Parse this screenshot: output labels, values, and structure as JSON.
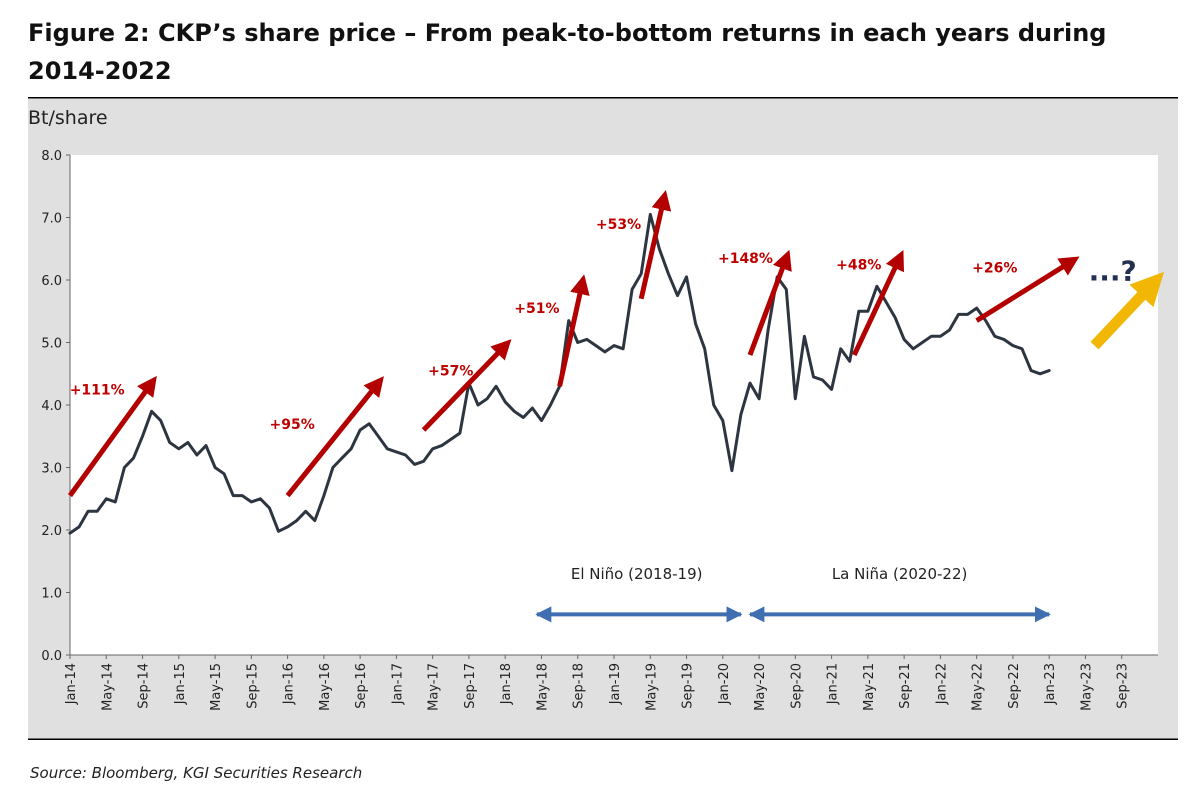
{
  "title": "Figure 2: CKP’s share price – From peak-to-bottom returns in each years during 2014-2022",
  "source": "Source: Bloomberg, KGI Securities Research",
  "colors": {
    "panel_bg": "#e0e0e0",
    "plot_bg": "#ffffff",
    "line": "#2d3540",
    "red_arrow": "#b30000",
    "red_label": "#c00000",
    "blue_arrow": "#3f6fb0",
    "gold_arrow": "#f2b705",
    "question": "#243050"
  },
  "chart_data": {
    "type": "line",
    "ylabel": "Bt/share",
    "ylim": [
      0,
      8
    ],
    "yticks": [
      "0.0",
      "1.0",
      "2.0",
      "3.0",
      "4.0",
      "5.0",
      "6.0",
      "7.0",
      "8.0"
    ],
    "xticks": [
      "Jan-14",
      "May-14",
      "Sep-14",
      "Jan-15",
      "May-15",
      "Sep-15",
      "Jan-16",
      "May-16",
      "Sep-16",
      "Jan-17",
      "May-17",
      "Sep-17",
      "Jan-18",
      "May-18",
      "Sep-18",
      "Jan-19",
      "May-19",
      "Sep-19",
      "Jan-20",
      "May-20",
      "Sep-20",
      "Jan-21",
      "May-21",
      "Sep-21",
      "Jan-22",
      "May-22",
      "Sep-22",
      "Jan-23",
      "May-23",
      "Sep-23"
    ],
    "series": [
      {
        "name": "CKP share price",
        "values": [
          [
            0,
            1.95
          ],
          [
            1,
            2.05
          ],
          [
            2,
            2.3
          ],
          [
            3,
            2.3
          ],
          [
            4,
            2.5
          ],
          [
            5,
            2.45
          ],
          [
            6,
            3.0
          ],
          [
            7,
            3.15
          ],
          [
            8,
            3.5
          ],
          [
            9,
            3.9
          ],
          [
            10,
            3.75
          ],
          [
            11,
            3.4
          ],
          [
            12,
            3.3
          ],
          [
            13,
            3.4
          ],
          [
            14,
            3.2
          ],
          [
            15,
            3.35
          ],
          [
            16,
            3.0
          ],
          [
            17,
            2.9
          ],
          [
            18,
            2.55
          ],
          [
            19,
            2.55
          ],
          [
            20,
            2.45
          ],
          [
            21,
            2.5
          ],
          [
            22,
            2.35
          ],
          [
            23,
            1.98
          ],
          [
            24,
            2.05
          ],
          [
            25,
            2.15
          ],
          [
            26,
            2.3
          ],
          [
            27,
            2.15
          ],
          [
            28,
            2.55
          ],
          [
            29,
            3.0
          ],
          [
            30,
            3.15
          ],
          [
            31,
            3.3
          ],
          [
            32,
            3.6
          ],
          [
            33,
            3.7
          ],
          [
            34,
            3.5
          ],
          [
            35,
            3.3
          ],
          [
            36,
            3.25
          ],
          [
            37,
            3.2
          ],
          [
            38,
            3.05
          ],
          [
            39,
            3.1
          ],
          [
            40,
            3.3
          ],
          [
            41,
            3.35
          ],
          [
            42,
            3.45
          ],
          [
            43,
            3.55
          ],
          [
            44,
            4.35
          ],
          [
            45,
            4.0
          ],
          [
            46,
            4.1
          ],
          [
            47,
            4.3
          ],
          [
            48,
            4.05
          ],
          [
            49,
            3.9
          ],
          [
            50,
            3.8
          ],
          [
            51,
            3.95
          ],
          [
            52,
            3.75
          ],
          [
            53,
            4.0
          ],
          [
            54,
            4.3
          ],
          [
            55,
            5.35
          ],
          [
            56,
            5.0
          ],
          [
            57,
            5.05
          ],
          [
            58,
            4.95
          ],
          [
            59,
            4.85
          ],
          [
            60,
            4.95
          ],
          [
            61,
            4.9
          ],
          [
            62,
            5.85
          ],
          [
            63,
            6.1
          ],
          [
            64,
            7.05
          ],
          [
            65,
            6.5
          ],
          [
            66,
            6.1
          ],
          [
            67,
            5.75
          ],
          [
            68,
            6.05
          ],
          [
            69,
            5.3
          ],
          [
            70,
            4.9
          ],
          [
            71,
            4.0
          ],
          [
            72,
            3.75
          ],
          [
            73,
            2.95
          ],
          [
            74,
            3.85
          ],
          [
            75,
            4.35
          ],
          [
            76,
            4.1
          ],
          [
            77,
            5.2
          ],
          [
            78,
            6.05
          ],
          [
            79,
            5.85
          ],
          [
            80,
            4.1
          ],
          [
            81,
            5.1
          ],
          [
            82,
            4.45
          ],
          [
            83,
            4.4
          ],
          [
            84,
            4.25
          ],
          [
            85,
            4.9
          ],
          [
            86,
            4.7
          ],
          [
            87,
            5.5
          ],
          [
            88,
            5.5
          ],
          [
            89,
            5.9
          ],
          [
            90,
            5.65
          ],
          [
            91,
            5.4
          ],
          [
            92,
            5.05
          ],
          [
            93,
            4.9
          ],
          [
            94,
            5.0
          ],
          [
            95,
            5.1
          ],
          [
            96,
            5.1
          ],
          [
            97,
            5.2
          ],
          [
            98,
            5.45
          ],
          [
            99,
            5.45
          ],
          [
            100,
            5.55
          ],
          [
            101,
            5.35
          ],
          [
            102,
            5.1
          ],
          [
            103,
            5.05
          ],
          [
            104,
            4.95
          ],
          [
            105,
            4.9
          ],
          [
            106,
            4.55
          ],
          [
            107,
            4.5
          ],
          [
            108,
            4.55
          ]
        ]
      }
    ],
    "annotations": {
      "red_arrows": [
        {
          "label": "+111%",
          "from": [
            0,
            2.55
          ],
          "to": [
            9,
            4.35
          ],
          "label_at": [
            3,
            4.25
          ]
        },
        {
          "label": "+95%",
          "from": [
            24,
            2.55
          ],
          "to": [
            34,
            4.35
          ],
          "label_at": [
            24.5,
            3.7
          ]
        },
        {
          "label": "+57%",
          "from": [
            39,
            3.6
          ],
          "to": [
            48,
            4.95
          ],
          "label_at": [
            42,
            4.55
          ]
        },
        {
          "label": "+51%",
          "from": [
            54,
            4.3
          ],
          "to": [
            56.5,
            5.95
          ],
          "label_at": [
            51.5,
            5.55
          ]
        },
        {
          "label": "+53%",
          "from": [
            63,
            5.7
          ],
          "to": [
            65.5,
            7.3
          ],
          "label_at": [
            60.5,
            6.9
          ]
        },
        {
          "label": "+148%",
          "from": [
            75,
            4.8
          ],
          "to": [
            79,
            6.35
          ],
          "label_at": [
            74.5,
            6.35
          ]
        },
        {
          "label": "+48%",
          "from": [
            86.5,
            4.8
          ],
          "to": [
            91.5,
            6.35
          ],
          "label_at": [
            87,
            6.25
          ]
        },
        {
          "label": "+26%",
          "from": [
            100,
            5.35
          ],
          "to": [
            110.5,
            6.3
          ],
          "label_at": [
            102,
            6.2
          ]
        }
      ],
      "gold_arrow": {
        "from": [
          113,
          4.95
        ],
        "to": [
          119.5,
          5.95
        ]
      },
      "question_text": "...?",
      "question_at": [
        115,
        6.15
      ],
      "periods": [
        {
          "label": "El Niño (2018-19)",
          "from": [
            51.5,
            0.65
          ],
          "to": [
            74,
            0.65
          ],
          "label_at": [
            62.5,
            1.3
          ]
        },
        {
          "label": "La Niña (2020-22)",
          "from": [
            75,
            0.65
          ],
          "to": [
            108,
            0.65
          ],
          "label_at": [
            91.5,
            1.3
          ]
        }
      ]
    }
  }
}
